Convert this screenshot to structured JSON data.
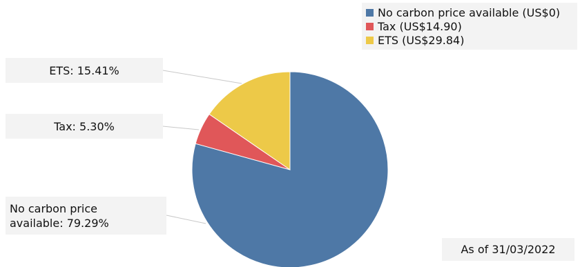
{
  "chart_data": {
    "type": "pie",
    "categories": [
      "No carbon price available (US$0)",
      "Tax (US$14.90)",
      "ETS (US$29.84)"
    ],
    "values": [
      79.29,
      5.3,
      15.41
    ],
    "colors": [
      "#4e78a6",
      "#e05759",
      "#edc948"
    ],
    "data_labels": [
      "No carbon price available: 79.29%",
      "Tax: 5.30%",
      "ETS: 15.41%"
    ],
    "start_angle_deg": 0,
    "direction": "clockwise",
    "legend_position": "top-right",
    "annotation": "As of 31/03/2022"
  },
  "labels": {
    "ets": "ETS: 15.41%",
    "tax": "Tax: 5.30%",
    "none_line1": "No carbon price",
    "none_line2": "available: 79.29%"
  }
}
